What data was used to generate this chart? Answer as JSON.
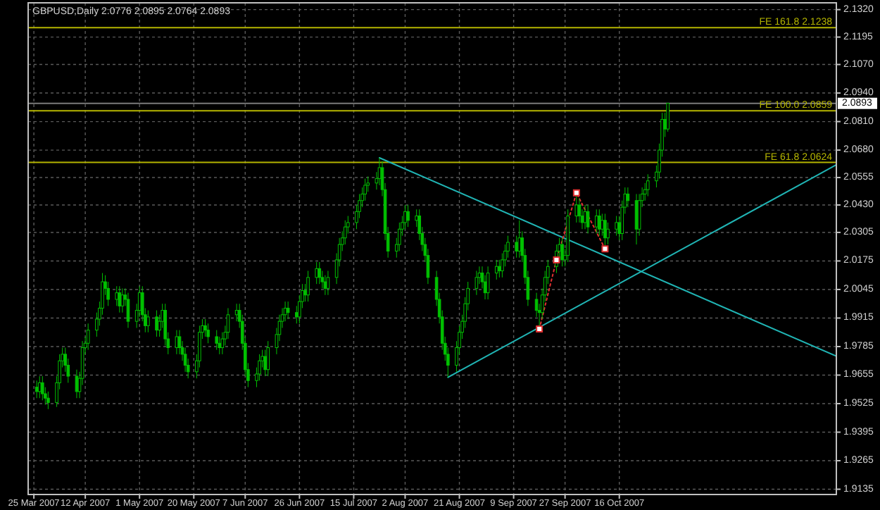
{
  "chart_data": {
    "type": "candlestick",
    "title": "GBPUSD,Daily  2.0776 2.0895 2.0764 2.0893",
    "color": "#00c000",
    "grid": true,
    "x": [
      "2007-03-26",
      "2007-03-27",
      "2007-03-28",
      "2007-03-29",
      "2007-03-30",
      "2007-04-02",
      "2007-04-03",
      "2007-04-04",
      "2007-04-05",
      "2007-04-06",
      "2007-04-09",
      "2007-04-10",
      "2007-04-11",
      "2007-04-12",
      "2007-04-13",
      "2007-04-16",
      "2007-04-17",
      "2007-04-18",
      "2007-04-19",
      "2007-04-20",
      "2007-04-23",
      "2007-04-24",
      "2007-04-25",
      "2007-04-26",
      "2007-04-27",
      "2007-04-30",
      "2007-05-01",
      "2007-05-02",
      "2007-05-03",
      "2007-05-04",
      "2007-05-07",
      "2007-05-08",
      "2007-05-09",
      "2007-05-10",
      "2007-05-11",
      "2007-05-14",
      "2007-05-15",
      "2007-05-16",
      "2007-05-17",
      "2007-05-18",
      "2007-05-21",
      "2007-05-22",
      "2007-05-23",
      "2007-05-24",
      "2007-05-25",
      "2007-05-28",
      "2007-05-29",
      "2007-05-30",
      "2007-05-31",
      "2007-06-01",
      "2007-06-04",
      "2007-06-05",
      "2007-06-06",
      "2007-06-07",
      "2007-06-08",
      "2007-06-11",
      "2007-06-12",
      "2007-06-13",
      "2007-06-14",
      "2007-06-15",
      "2007-06-18",
      "2007-06-19",
      "2007-06-20",
      "2007-06-21",
      "2007-06-22",
      "2007-06-25",
      "2007-06-26",
      "2007-06-27",
      "2007-06-28",
      "2007-06-29",
      "2007-07-02",
      "2007-07-03",
      "2007-07-04",
      "2007-07-05",
      "2007-07-06",
      "2007-07-09",
      "2007-07-10",
      "2007-07-11",
      "2007-07-12",
      "2007-07-13",
      "2007-07-16",
      "2007-07-17",
      "2007-07-18",
      "2007-07-19",
      "2007-07-20",
      "2007-07-23",
      "2007-07-24",
      "2007-07-25",
      "2007-07-26",
      "2007-07-27",
      "2007-07-30",
      "2007-07-31",
      "2007-08-01",
      "2007-08-02",
      "2007-08-03",
      "2007-08-06",
      "2007-08-07",
      "2007-08-08",
      "2007-08-09",
      "2007-08-10",
      "2007-08-13",
      "2007-08-14",
      "2007-08-15",
      "2007-08-16",
      "2007-08-17",
      "2007-08-20",
      "2007-08-21",
      "2007-08-22",
      "2007-08-23",
      "2007-08-24",
      "2007-08-27",
      "2007-08-28",
      "2007-08-29",
      "2007-08-30",
      "2007-08-31",
      "2007-09-03",
      "2007-09-04",
      "2007-09-05",
      "2007-09-06",
      "2007-09-07",
      "2007-09-10",
      "2007-09-11",
      "2007-09-12",
      "2007-09-13",
      "2007-09-14",
      "2007-09-17",
      "2007-09-18",
      "2007-09-19",
      "2007-09-20",
      "2007-09-21",
      "2007-09-24",
      "2007-09-25",
      "2007-09-26",
      "2007-09-27",
      "2007-09-28",
      "2007-10-01",
      "2007-10-02",
      "2007-10-03",
      "2007-10-04",
      "2007-10-05",
      "2007-10-08",
      "2007-10-09",
      "2007-10-10",
      "2007-10-11",
      "2007-10-12",
      "2007-10-15",
      "2007-10-16",
      "2007-10-17",
      "2007-10-18",
      "2007-10-19",
      "2007-10-22",
      "2007-10-23",
      "2007-10-24",
      "2007-10-25",
      "2007-10-26",
      "2007-10-29",
      "2007-10-30",
      "2007-10-31",
      "2007-11-01",
      "2007-11-02"
    ],
    "ohlc": [
      [
        1.96,
        1.963,
        1.955,
        1.958
      ],
      [
        1.958,
        1.965,
        1.955,
        1.962
      ],
      [
        1.962,
        1.965,
        1.954,
        1.957
      ],
      [
        1.957,
        1.96,
        1.952,
        1.955
      ],
      [
        1.955,
        1.958,
        1.95,
        1.953
      ],
      [
        1.953,
        1.965,
        1.951,
        1.962
      ],
      [
        1.962,
        1.975,
        1.959,
        1.972
      ],
      [
        1.972,
        1.978,
        1.969,
        1.975
      ],
      [
        1.975,
        1.978,
        1.967,
        1.97
      ],
      [
        1.97,
        1.973,
        1.962,
        1.965
      ],
      [
        1.965,
        1.968,
        1.955,
        1.958
      ],
      [
        1.958,
        1.967,
        1.955,
        1.964
      ],
      [
        1.964,
        1.981,
        1.961,
        1.978
      ],
      [
        1.978,
        1.983,
        1.975,
        1.98
      ],
      [
        1.98,
        1.989,
        1.977,
        1.986
      ],
      [
        1.986,
        1.994,
        1.983,
        1.991
      ],
      [
        1.991,
        1.999,
        1.988,
        1.996
      ],
      [
        1.996,
        2.012,
        1.993,
        2.008
      ],
      [
        2.008,
        2.011,
        2.002,
        2.005
      ],
      [
        2.005,
        2.008,
        1.997,
        2.0
      ],
      [
        2.0,
        2.006,
        1.997,
        2.003
      ],
      [
        2.003,
        2.006,
        1.994,
        1.997
      ],
      [
        1.997,
        2.005,
        1.994,
        2.002
      ],
      [
        2.002,
        2.005,
        1.997,
        2.0
      ],
      [
        2.0,
        2.003,
        1.987,
        1.99
      ],
      [
        1.99,
        1.998,
        1.987,
        1.995
      ],
      [
        1.995,
        2.006,
        1.992,
        2.003
      ],
      [
        2.003,
        2.006,
        1.99,
        1.993
      ],
      [
        1.993,
        1.996,
        1.985,
        1.988
      ],
      [
        1.988,
        1.995,
        1.985,
        1.992
      ],
      [
        1.992,
        1.995,
        1.983,
        1.986
      ],
      [
        1.986,
        1.993,
        1.983,
        1.99
      ],
      [
        1.99,
        1.998,
        1.987,
        1.995
      ],
      [
        1.995,
        1.998,
        1.979,
        1.982
      ],
      [
        1.982,
        1.985,
        1.975,
        1.978
      ],
      [
        1.978,
        1.986,
        1.975,
        1.983
      ],
      [
        1.983,
        1.986,
        1.975,
        1.978
      ],
      [
        1.978,
        1.981,
        1.972,
        1.975
      ],
      [
        1.975,
        1.978,
        1.967,
        1.97
      ],
      [
        1.97,
        1.973,
        1.964,
        1.967
      ],
      [
        1.967,
        1.975,
        1.964,
        1.972
      ],
      [
        1.972,
        1.988,
        1.969,
        1.985
      ],
      [
        1.985,
        1.991,
        1.982,
        1.988
      ],
      [
        1.988,
        1.991,
        1.983,
        1.986
      ],
      [
        1.986,
        1.989,
        1.98,
        1.983
      ],
      [
        1.983,
        1.986,
        1.977,
        1.98
      ],
      [
        1.98,
        1.983,
        1.975,
        1.978
      ],
      [
        1.978,
        1.985,
        1.975,
        1.982
      ],
      [
        1.982,
        1.988,
        1.979,
        1.985
      ],
      [
        1.985,
        1.996,
        1.982,
        1.993
      ],
      [
        1.993,
        1.998,
        1.99,
        1.995
      ],
      [
        1.995,
        1.998,
        1.987,
        1.99
      ],
      [
        1.99,
        1.993,
        1.977,
        1.98
      ],
      [
        1.98,
        1.983,
        1.965,
        1.968
      ],
      [
        1.968,
        1.971,
        1.96,
        1.963
      ],
      [
        1.963,
        1.969,
        1.96,
        1.966
      ],
      [
        1.966,
        1.975,
        1.963,
        1.972
      ],
      [
        1.972,
        1.977,
        1.969,
        1.974
      ],
      [
        1.974,
        1.977,
        1.965,
        1.968
      ],
      [
        1.968,
        1.981,
        1.965,
        1.978
      ],
      [
        1.978,
        1.987,
        1.975,
        1.984
      ],
      [
        1.984,
        1.993,
        1.981,
        1.99
      ],
      [
        1.99,
        1.996,
        1.987,
        1.993
      ],
      [
        1.993,
        1.999,
        1.99,
        1.996
      ],
      [
        1.996,
        1.999,
        1.991,
        1.994
      ],
      [
        1.994,
        1.997,
        1.989,
        1.992
      ],
      [
        1.992,
        2.002,
        1.989,
        1.999
      ],
      [
        1.999,
        2.007,
        1.996,
        2.004
      ],
      [
        2.004,
        2.007,
        1.999,
        2.002
      ],
      [
        2.002,
        2.013,
        1.999,
        2.01
      ],
      [
        2.01,
        2.017,
        2.007,
        2.014
      ],
      [
        2.014,
        2.017,
        2.007,
        2.01
      ],
      [
        2.01,
        2.013,
        2.005,
        2.008
      ],
      [
        2.008,
        2.011,
        2.002,
        2.005
      ],
      [
        2.005,
        2.013,
        2.002,
        2.01
      ],
      [
        2.01,
        2.021,
        2.007,
        2.018
      ],
      [
        2.018,
        2.028,
        2.015,
        2.025
      ],
      [
        2.025,
        2.031,
        2.022,
        2.028
      ],
      [
        2.028,
        2.036,
        2.025,
        2.033
      ],
      [
        2.033,
        2.038,
        2.03,
        2.035
      ],
      [
        2.035,
        2.043,
        2.032,
        2.04
      ],
      [
        2.04,
        2.048,
        2.037,
        2.045
      ],
      [
        2.045,
        2.051,
        2.042,
        2.048
      ],
      [
        2.048,
        2.055,
        2.045,
        2.052
      ],
      [
        2.052,
        2.056,
        2.049,
        2.053
      ],
      [
        2.053,
        2.058,
        2.05,
        2.055
      ],
      [
        2.055,
        2.0645,
        2.052,
        2.06
      ],
      [
        2.06,
        2.063,
        2.047,
        2.05
      ],
      [
        2.05,
        2.053,
        2.027,
        2.03
      ],
      [
        2.03,
        2.033,
        2.019,
        2.022
      ],
      [
        2.022,
        2.028,
        2.019,
        2.025
      ],
      [
        2.025,
        2.035,
        2.022,
        2.032
      ],
      [
        2.032,
        2.038,
        2.029,
        2.035
      ],
      [
        2.035,
        2.043,
        2.032,
        2.04
      ],
      [
        2.04,
        2.043,
        2.033,
        2.036
      ],
      [
        2.036,
        2.041,
        2.033,
        2.038
      ],
      [
        2.038,
        2.041,
        2.027,
        2.03
      ],
      [
        2.03,
        2.033,
        2.022,
        2.025
      ],
      [
        2.025,
        2.028,
        2.017,
        2.02
      ],
      [
        2.02,
        2.023,
        2.007,
        2.01
      ],
      [
        2.01,
        2.013,
        1.997,
        2.0
      ],
      [
        2.0,
        2.003,
        1.989,
        1.992
      ],
      [
        1.992,
        1.995,
        1.977,
        1.98
      ],
      [
        1.98,
        1.983,
        1.972,
        1.975
      ],
      [
        1.975,
        1.978,
        1.9645,
        1.97
      ],
      [
        1.97,
        1.981,
        1.967,
        1.978
      ],
      [
        1.978,
        1.988,
        1.975,
        1.985
      ],
      [
        1.985,
        1.993,
        1.982,
        1.99
      ],
      [
        1.99,
        2.001,
        1.987,
        1.998
      ],
      [
        1.998,
        2.008,
        1.995,
        2.005
      ],
      [
        2.005,
        2.013,
        2.002,
        2.01
      ],
      [
        2.01,
        2.015,
        2.007,
        2.012
      ],
      [
        2.012,
        2.015,
        2.005,
        2.008
      ],
      [
        2.008,
        2.011,
        2.0,
        2.003
      ],
      [
        2.003,
        2.015,
        2.0,
        2.012
      ],
      [
        2.012,
        2.018,
        2.009,
        2.015
      ],
      [
        2.015,
        2.018,
        2.01,
        2.013
      ],
      [
        2.013,
        2.021,
        2.01,
        2.018
      ],
      [
        2.018,
        2.025,
        2.015,
        2.022
      ],
      [
        2.022,
        2.029,
        2.019,
        2.026
      ],
      [
        2.026,
        2.029,
        2.019,
        2.022
      ],
      [
        2.022,
        2.036,
        2.019,
        2.028
      ],
      [
        2.028,
        2.031,
        2.017,
        2.02
      ],
      [
        2.02,
        2.023,
        2.007,
        2.01
      ],
      [
        2.01,
        2.013,
        1.997,
        2.0
      ],
      [
        2.0,
        2.003,
        1.992,
        1.995
      ],
      [
        1.995,
        1.998,
        1.9865,
        1.994
      ],
      [
        1.994,
        2.005,
        1.991,
        2.002
      ],
      [
        2.002,
        2.013,
        1.999,
        2.01
      ],
      [
        2.01,
        2.018,
        2.007,
        2.015
      ],
      [
        2.015,
        2.025,
        2.012,
        2.022
      ],
      [
        2.022,
        2.028,
        2.017,
        2.025
      ],
      [
        2.025,
        2.028,
        2.015,
        2.018
      ],
      [
        2.018,
        2.023,
        2.015,
        2.02
      ],
      [
        2.02,
        2.041,
        2.017,
        2.038
      ],
      [
        2.038,
        2.0485,
        2.035,
        2.043
      ],
      [
        2.043,
        2.046,
        2.035,
        2.038
      ],
      [
        2.038,
        2.041,
        2.032,
        2.035
      ],
      [
        2.035,
        2.043,
        2.032,
        2.04
      ],
      [
        2.04,
        2.043,
        2.03,
        2.033
      ],
      [
        2.033,
        2.041,
        2.03,
        2.038
      ],
      [
        2.038,
        2.041,
        2.029,
        2.032
      ],
      [
        2.032,
        2.039,
        2.029,
        2.036
      ],
      [
        2.036,
        2.039,
        2.023,
        2.028
      ],
      [
        2.028,
        2.035,
        2.025,
        2.032
      ],
      [
        2.032,
        2.038,
        2.029,
        2.035
      ],
      [
        2.035,
        2.038,
        2.027,
        2.03
      ],
      [
        2.03,
        2.045,
        2.027,
        2.042
      ],
      [
        2.042,
        2.051,
        2.039,
        2.048
      ],
      [
        2.048,
        2.051,
        2.042,
        2.045
      ],
      [
        2.045,
        2.048,
        2.025,
        2.032
      ],
      [
        2.032,
        2.048,
        2.029,
        2.045
      ],
      [
        2.045,
        2.051,
        2.042,
        2.048
      ],
      [
        2.048,
        2.053,
        2.045,
        2.05
      ],
      [
        2.05,
        2.057,
        2.047,
        2.054
      ],
      [
        2.054,
        2.061,
        2.051,
        2.058
      ],
      [
        2.058,
        2.071,
        2.055,
        2.068
      ],
      [
        2.068,
        2.085,
        2.065,
        2.082
      ],
      [
        2.082,
        2.085,
        2.074,
        2.0776
      ],
      [
        2.0776,
        2.0895,
        2.0764,
        2.0893
      ]
    ],
    "series": [
      {
        "type": "line",
        "color": "#20b4b4",
        "x": [
          "2007-07-24",
          "2007-12-31"
        ],
        "values": [
          2.0645,
          1.9741
        ]
      },
      {
        "type": "line",
        "color": "#20b4b4",
        "x": [
          "2007-08-17",
          "2007-12-31"
        ],
        "values": [
          1.9645,
          2.0613
        ]
      },
      {
        "type": "line",
        "color": "#e03030",
        "line_style": "dotted",
        "marker": "square",
        "x": [
          "2007-09-18",
          "2007-09-24",
          "2007-10-01",
          "2007-10-11"
        ],
        "values": [
          1.9865,
          2.018,
          2.0485,
          2.023
        ]
      }
    ],
    "ref_lines": [
      {
        "axis": "y",
        "value": 2.1238,
        "label": "FE 161.8  2.1238",
        "color": "#b4b400"
      },
      {
        "axis": "y",
        "value": 2.0859,
        "label": "FE 100.0  2.0859",
        "color": "#b4b400"
      },
      {
        "axis": "y",
        "value": 2.0624,
        "label": "FE 61.8  2.0624",
        "color": "#b4b400"
      },
      {
        "axis": "y",
        "value": 2.0893,
        "label": "2.0893",
        "color": "#7a7a7a"
      }
    ],
    "xlim": [
      "2007-03-23",
      "2007-12-31"
    ],
    "xticks": [
      {
        "value": "2007-03-25",
        "label": "25 Mar 2007"
      },
      {
        "value": "2007-04-12",
        "label": "12 Apr 2007"
      },
      {
        "value": "2007-05-01",
        "label": "1 May 2007"
      },
      {
        "value": "2007-05-20",
        "label": "20 May 2007"
      },
      {
        "value": "2007-06-07",
        "label": "7 Jun 2007"
      },
      {
        "value": "2007-06-26",
        "label": "26 Jun 2007"
      },
      {
        "value": "2007-07-15",
        "label": "15 Jul 2007"
      },
      {
        "value": "2007-08-02",
        "label": "2 Aug 2007"
      },
      {
        "value": "2007-08-21",
        "label": "21 Aug 2007"
      },
      {
        "value": "2007-09-09",
        "label": "9 Sep 2007"
      },
      {
        "value": "2007-09-27",
        "label": "27 Sep 2007"
      },
      {
        "value": "2007-10-16",
        "label": "16 Oct 2007"
      }
    ],
    "ylim": [
      1.9111,
      2.1351
    ],
    "yticks": [
      {
        "value": 2.132,
        "label": "2.1320"
      },
      2.1195,
      {
        "value": 2.107,
        "label": "2.1070"
      },
      {
        "value": 2.094,
        "label": "2.0940"
      },
      {
        "value": 2.081,
        "label": "2.0810"
      },
      {
        "value": 2.068,
        "label": "2.0680"
      },
      2.0555,
      {
        "value": 2.043,
        "label": "2.0430"
      },
      2.0305,
      2.0175,
      2.0045,
      1.9915,
      1.9785,
      1.9655,
      1.9525,
      1.9395,
      1.9265,
      1.9135
    ]
  }
}
